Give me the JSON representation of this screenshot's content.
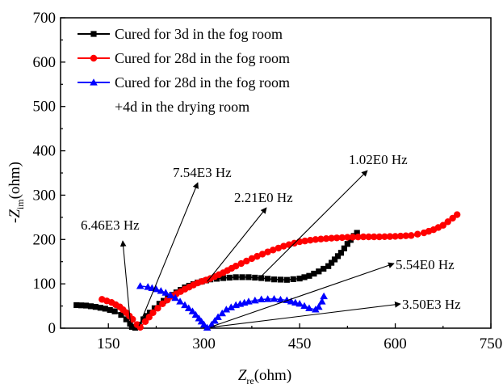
{
  "chart_data": {
    "type": "scatter",
    "title": "",
    "xlabel": {
      "main": "Z",
      "sub": "re",
      "unit": "(ohm)"
    },
    "ylabel": {
      "prefix": "-",
      "main": "Z",
      "sub": "im",
      "unit": "(ohm)"
    },
    "xlim": [
      75,
      750
    ],
    "ylim": [
      0,
      700
    ],
    "x_ticks": [
      150,
      300,
      450,
      600,
      750
    ],
    "y_ticks": [
      0,
      100,
      200,
      300,
      400,
      500,
      600,
      700
    ],
    "grid": false,
    "legend_position": "top-left",
    "series": [
      {
        "name": "Cured for 3d in the fog room",
        "color": "#000000",
        "marker": "square",
        "points": [
          [
            100,
            52
          ],
          [
            115,
            51
          ],
          [
            130,
            48
          ],
          [
            145,
            44
          ],
          [
            160,
            38
          ],
          [
            170,
            30
          ],
          [
            178,
            20
          ],
          [
            184,
            10
          ],
          [
            187,
            3
          ],
          [
            192,
            1
          ],
          [
            198,
            8
          ],
          [
            205,
            20
          ],
          [
            215,
            35
          ],
          [
            230,
            55
          ],
          [
            250,
            75
          ],
          [
            270,
            92
          ],
          [
            290,
            103
          ],
          [
            310,
            110
          ],
          [
            330,
            113
          ],
          [
            350,
            115
          ],
          [
            370,
            115
          ],
          [
            390,
            113
          ],
          [
            410,
            110
          ],
          [
            430,
            109
          ],
          [
            450,
            112
          ],
          [
            465,
            118
          ],
          [
            480,
            128
          ],
          [
            495,
            140
          ],
          [
            505,
            155
          ],
          [
            515,
            170
          ],
          [
            525,
            190
          ],
          [
            535,
            208
          ],
          [
            540,
            215
          ]
        ]
      },
      {
        "name": "Cured for 28d in the fog room",
        "color": "#ff0000",
        "marker": "circle",
        "points": [
          [
            140,
            65
          ],
          [
            155,
            58
          ],
          [
            168,
            48
          ],
          [
            178,
            35
          ],
          [
            188,
            20
          ],
          [
            195,
            8
          ],
          [
            200,
            2
          ],
          [
            208,
            15
          ],
          [
            220,
            35
          ],
          [
            235,
            55
          ],
          [
            250,
            72
          ],
          [
            270,
            88
          ],
          [
            290,
            102
          ],
          [
            310,
            112
          ],
          [
            330,
            125
          ],
          [
            350,
            140
          ],
          [
            375,
            157
          ],
          [
            400,
            172
          ],
          [
            425,
            185
          ],
          [
            450,
            195
          ],
          [
            475,
            200
          ],
          [
            500,
            203
          ],
          [
            525,
            205
          ],
          [
            550,
            206
          ],
          [
            575,
            206
          ],
          [
            600,
            207
          ],
          [
            625,
            209
          ],
          [
            645,
            215
          ],
          [
            660,
            222
          ],
          [
            675,
            232
          ],
          [
            690,
            248
          ],
          [
            697,
            256
          ]
        ]
      },
      {
        "name": "Cured for 28d in the fog room",
        "name_line2": "+4d in the drying room",
        "color": "#0000ff",
        "marker": "triangle",
        "points": [
          [
            200,
            95
          ],
          [
            212,
            93
          ],
          [
            225,
            88
          ],
          [
            240,
            80
          ],
          [
            255,
            68
          ],
          [
            270,
            52
          ],
          [
            282,
            38
          ],
          [
            292,
            22
          ],
          [
            300,
            8
          ],
          [
            305,
            1
          ],
          [
            312,
            8
          ],
          [
            322,
            25
          ],
          [
            335,
            42
          ],
          [
            350,
            52
          ],
          [
            370,
            60
          ],
          [
            390,
            65
          ],
          [
            410,
            66
          ],
          [
            430,
            63
          ],
          [
            450,
            55
          ],
          [
            465,
            45
          ],
          [
            475,
            42
          ],
          [
            480,
            48
          ],
          [
            485,
            60
          ],
          [
            488,
            72
          ]
        ]
      }
    ],
    "annotations": [
      {
        "label": "6.46E3 Hz",
        "value": "6.46E3 Hz",
        "point": [
          185,
          5
        ],
        "text_at": [
          113,
          292
        ]
      },
      {
        "label": "7.54E3 Hz",
        "value": "7.54E3 Hz",
        "point": [
          198,
          5
        ],
        "text_at": [
          215,
          378
        ]
      },
      {
        "label": "2.21E0 Hz",
        "value": "2.21E0 Hz",
        "point": [
          305,
          105
        ],
        "text_at": [
          318,
          288
        ]
      },
      {
        "label": "1.02E0 Hz",
        "value": "1.02E0 Hz",
        "point": [
          385,
          110
        ],
        "text_at": [
          520,
          368
        ]
      },
      {
        "label": "5.54E0 Hz",
        "value": "5.54E0 Hz",
        "point": [
          315,
          5
        ],
        "text_at": [
          565,
          140
        ]
      },
      {
        "label": "3.50E3 Hz",
        "value": "3.50E3 Hz",
        "point": [
          310,
          2
        ],
        "text_at": [
          560,
          70
        ]
      }
    ]
  }
}
